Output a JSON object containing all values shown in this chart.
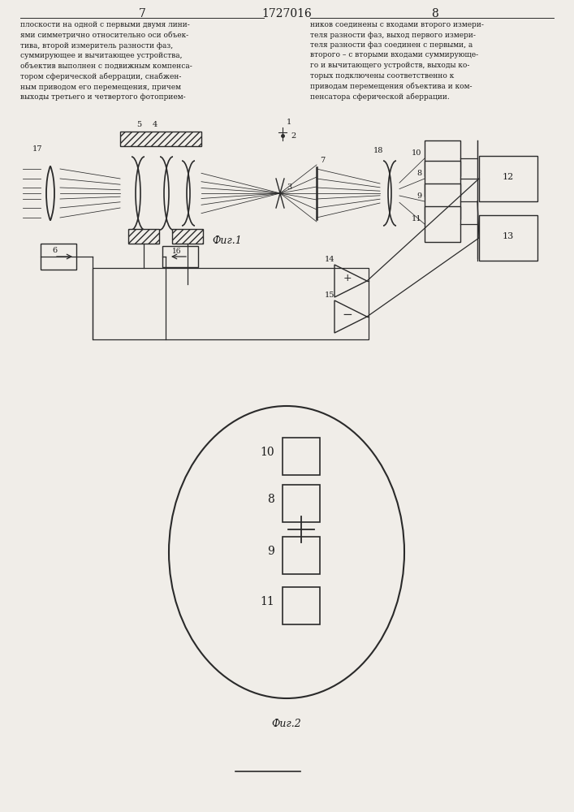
{
  "page_width": 7.07,
  "page_height": 10.0,
  "bg_color": "#f0ede8",
  "text_color": "#1a1a1a",
  "line_color": "#2a2a2a",
  "page_numbers": [
    "7",
    "8"
  ],
  "patent_number": "1727016",
  "fig1_caption": "Фиг.1",
  "fig2_caption": "Фиг.2",
  "left_text": "плоскости на одной с первыми двумя лини-\nями симметрично относительно оси объек-\nтива, второй измеритель разности фаз,\nсуммирующее и вычитающее устройства,\nобъектив выполнен с подвижным компенса-\nтором сферической аберрации, снабжен-\nным приводом его перемещения, причем\nвыходы третьего и четвертого фотоприем-",
  "right_text": "ников соединены с входами второго измери-\nтеля разности фаз, выход первого измери-\nтеля разности фаз соединен с первыми, а\nвторого – с вторыми входами суммирующе-\nго и вычитающего устройств, выходы ко-\nторых подключены соответственно к\nприводам перемещения объектива и ком-\nпенсатора сферической аберрации."
}
